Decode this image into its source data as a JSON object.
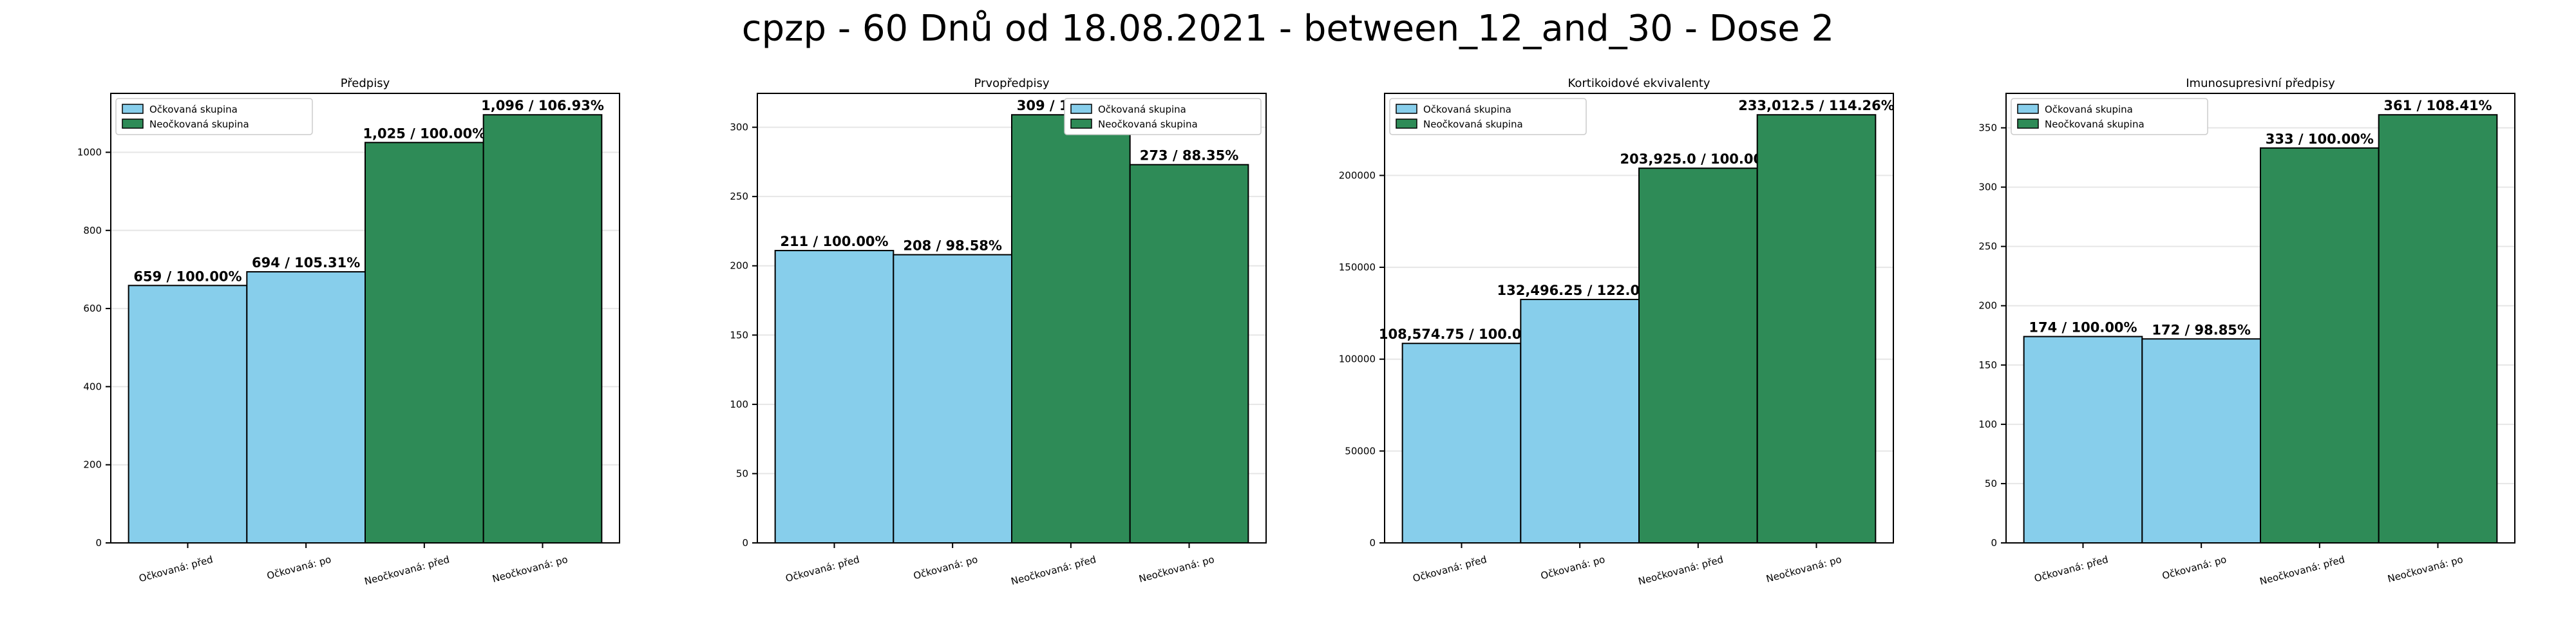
{
  "figure": {
    "suptitle": "cpzp - 60 Dnů od 18.08.2021 - between_12_and_30 - Dose 2"
  },
  "colors": {
    "vaccinated": "#87CEEB",
    "unvaccinated": "#2E8B57",
    "bar_edge": "#000000",
    "grid": "#e6e6e6"
  },
  "legend_labels": [
    "Očkovaná skupina",
    "Neočkovaná skupina"
  ],
  "chart_data": [
    {
      "type": "bar",
      "title": "Předpisy",
      "categories": [
        "Očkovaná: před",
        "Očkovaná: po",
        "Neočkovaná: před",
        "Neočkovaná: po"
      ],
      "values": [
        659,
        694,
        1025,
        1096
      ],
      "data_labels": [
        "659 / 100.00%",
        "694 / 105.31%",
        "1,025 / 100.00%",
        "1,096 / 106.93%"
      ],
      "groups": [
        "vaccinated",
        "vaccinated",
        "unvaccinated",
        "unvaccinated"
      ],
      "yticks": [
        0,
        200,
        400,
        600,
        800,
        1000
      ],
      "ytick_labels": [
        "0",
        "200",
        "400",
        "600",
        "800",
        "1000"
      ],
      "ylim": [
        0,
        1150.8
      ],
      "grid": "y",
      "legend_loc": "upper left"
    },
    {
      "type": "bar",
      "title": "Prvopředpisy",
      "categories": [
        "Očkovaná: před",
        "Očkovaná: po",
        "Neočkovaná: před",
        "Neočkovaná: po"
      ],
      "values": [
        211,
        208,
        309,
        273
      ],
      "data_labels": [
        "211 / 100.00%",
        "208 / 98.58%",
        "309 / 100.00%",
        "273 / 88.35%"
      ],
      "groups": [
        "vaccinated",
        "vaccinated",
        "unvaccinated",
        "unvaccinated"
      ],
      "yticks": [
        0,
        50,
        100,
        150,
        200,
        250,
        300
      ],
      "ytick_labels": [
        "0",
        "50",
        "100",
        "150",
        "200",
        "250",
        "300"
      ],
      "ylim": [
        0,
        324.45
      ],
      "grid": "y",
      "legend_loc": "upper right"
    },
    {
      "type": "bar",
      "title": "Kortikoidové ekvivalenty",
      "categories": [
        "Očkovaná: před",
        "Očkovaná: po",
        "Neočkovaná: před",
        "Neočkovaná: po"
      ],
      "values": [
        108574.75,
        132496.25,
        203925.0,
        233012.5
      ],
      "data_labels": [
        "108,574.75 / 100.00%",
        "132,496.25 / 122.03%",
        "203,925.0 / 100.00%",
        "233,012.5 / 114.26%"
      ],
      "groups": [
        "vaccinated",
        "vaccinated",
        "unvaccinated",
        "unvaccinated"
      ],
      "yticks": [
        0,
        50000,
        100000,
        150000,
        200000
      ],
      "ytick_labels": [
        "0",
        "50000",
        "100000",
        "150000",
        "200000"
      ],
      "ylim": [
        0,
        244663
      ],
      "grid": "y",
      "legend_loc": "upper left"
    },
    {
      "type": "bar",
      "title": "Imunosupresivní předpisy",
      "categories": [
        "Očkovaná: před",
        "Očkovaná: po",
        "Neočkovaná: před",
        "Neočkovaná: po"
      ],
      "values": [
        174,
        172,
        333,
        361
      ],
      "data_labels": [
        "174 / 100.00%",
        "172 / 98.85%",
        "333 / 100.00%",
        "361 / 108.41%"
      ],
      "groups": [
        "vaccinated",
        "vaccinated",
        "unvaccinated",
        "unvaccinated"
      ],
      "yticks": [
        0,
        50,
        100,
        150,
        200,
        250,
        300,
        350
      ],
      "ytick_labels": [
        "0",
        "50",
        "100",
        "150",
        "200",
        "250",
        "300",
        "350"
      ],
      "ylim": [
        0,
        379.05
      ],
      "grid": "y",
      "legend_loc": "upper left"
    }
  ]
}
